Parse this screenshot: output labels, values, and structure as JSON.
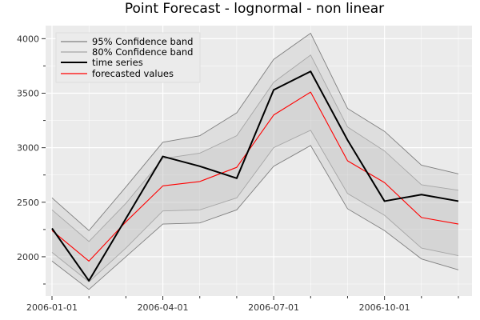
{
  "chart_data": {
    "type": "line",
    "title": "Point Forecast - lognormal - non linear",
    "xlabel": "",
    "ylabel": "",
    "x": [
      "2006-01-01",
      "2006-02-01",
      "2006-03-01",
      "2006-04-01",
      "2006-05-01",
      "2006-06-01",
      "2006-07-01",
      "2006-08-01",
      "2006-09-01",
      "2006-10-01",
      "2006-11-01",
      "2006-12-01"
    ],
    "xticks": [
      "2006-01-01",
      "2006-04-01",
      "2006-07-01",
      "2006-10-01"
    ],
    "yticks": [
      2000,
      2500,
      3000,
      3500,
      4000
    ],
    "ylim": [
      1640,
      4120
    ],
    "grid": true,
    "legend_position": "top-left",
    "series": [
      {
        "name": "time series",
        "color": "#000000",
        "values": [
          2260,
          1780,
          2350,
          2920,
          2830,
          2720,
          3530,
          3700,
          3070,
          2510,
          2570,
          2510
        ]
      },
      {
        "name": "forecasted values",
        "color": "#ff0000",
        "values": [
          2240,
          1960,
          2320,
          2650,
          2690,
          2820,
          3300,
          3510,
          2880,
          2680,
          2360,
          2300
        ]
      }
    ],
    "bands": [
      {
        "name": "95% Confidence band",
        "color": "#7f7f7f",
        "lower": [
          1960,
          1700,
          2000,
          2300,
          2310,
          2430,
          2830,
          3020,
          2440,
          2240,
          1980,
          1880
        ],
        "upper": [
          2540,
          2240,
          2640,
          3050,
          3110,
          3320,
          3810,
          4050,
          3360,
          3150,
          2840,
          2760
        ]
      },
      {
        "name": "80% Confidence band",
        "color": "#a6a6a6",
        "lower": [
          2040,
          1770,
          2080,
          2420,
          2430,
          2540,
          3000,
          3160,
          2580,
          2380,
          2080,
          2010
        ],
        "upper": [
          2430,
          2140,
          2490,
          2900,
          2950,
          3110,
          3600,
          3850,
          3190,
          2970,
          2660,
          2610
        ]
      }
    ]
  }
}
